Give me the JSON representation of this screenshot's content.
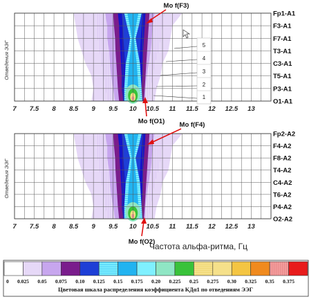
{
  "chart_data": [
    {
      "type": "heatmap",
      "ylabel": "Отведения ЭЭГ",
      "xlabel": "",
      "xlim": [
        7,
        13.5
      ],
      "x_ticks": [
        "7",
        "7.5",
        "8",
        "8.5",
        "9",
        "9.5",
        "10",
        "10.5",
        "11",
        "11.5",
        "12",
        "12.5",
        "13"
      ],
      "rows": [
        "Fp1-A1",
        "F3-A1",
        "F7-A1",
        "T3-A1",
        "C3-A1",
        "T5-A1",
        "P3-A1",
        "O1-A1"
      ],
      "peak_freq_hz": 10,
      "annotations": [
        "Mo f(F3)",
        "Mo f(O1)"
      ],
      "contour_labels": [
        "5",
        "4",
        "3",
        "2",
        "1"
      ]
    },
    {
      "type": "heatmap",
      "ylabel": "Отведения ЭЭГ",
      "xlabel": "Частота альфа-ритма, Гц",
      "xlim": [
        7,
        13.5
      ],
      "x_ticks": [
        "7",
        "7.5",
        "8",
        "8.5",
        "9",
        "9.5",
        "10",
        "10.5",
        "11",
        "11.5",
        "12",
        "12.5",
        "13"
      ],
      "rows": [
        "Fp2-A2",
        "F4-A2",
        "F8-A2",
        "T4-A2",
        "C4-A2",
        "T6-A2",
        "P4-A2",
        "O2-A2"
      ],
      "peak_freq_hz": 10,
      "annotations": [
        "Mo f(F4)",
        "Mo f(O2)"
      ]
    }
  ],
  "legend": {
    "title": "Цветовая шкала распределения коэффициента КДα1 по отведениям ЭЭГ",
    "ticks": [
      "0",
      "0.025",
      "0.05",
      "0.075",
      "0.10",
      "0.125",
      "0.15",
      "0.175",
      "0.20",
      "0.225",
      "0.25",
      "0.275",
      "0.30",
      "0.325",
      "0.35",
      "0.375"
    ],
    "colors": [
      "#ffffff",
      "#e6d8f7",
      "#c7a6ee",
      "#7a1d8c",
      "#1e3fd6",
      "#1414c8",
      "#22b3f0",
      "#7ff0ff",
      "#8fe6c4",
      "#39c23a",
      "#e8f2a0",
      "#f5e08a",
      "#f4c542",
      "#f08a1e",
      "#f29a9a",
      "#e81c1c"
    ]
  }
}
